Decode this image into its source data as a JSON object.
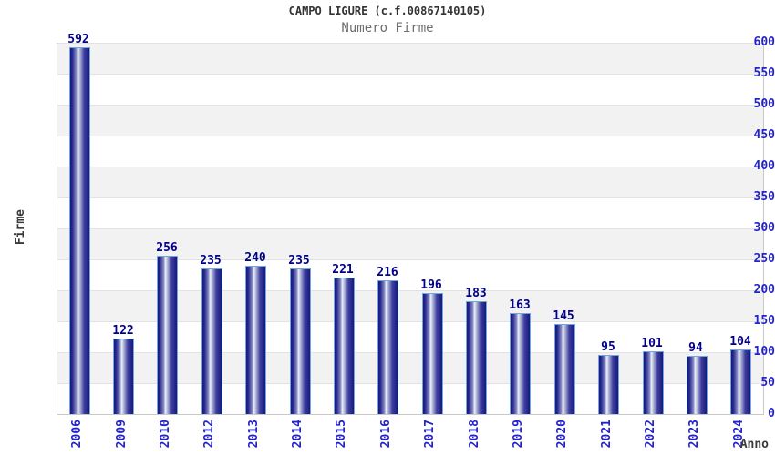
{
  "header": {
    "title": "CAMPO LIGURE (c.f.00867140105)",
    "subtitle": "Numero Firme"
  },
  "chart_data": {
    "type": "bar",
    "title": "CAMPO LIGURE (c.f.00867140105)",
    "subtitle": "Numero Firme",
    "xlabel": "Anno",
    "ylabel": "Firme",
    "categories": [
      "2006",
      "2009",
      "2010",
      "2012",
      "2013",
      "2014",
      "2015",
      "2016",
      "2017",
      "2018",
      "2019",
      "2020",
      "2021",
      "2022",
      "2023",
      "2024"
    ],
    "values": [
      592,
      122,
      256,
      235,
      240,
      235,
      221,
      216,
      196,
      183,
      163,
      145,
      95,
      101,
      94,
      104
    ],
    "ylim": [
      0,
      600
    ],
    "yticks": [
      0,
      50,
      100,
      150,
      200,
      250,
      300,
      350,
      400,
      450,
      500,
      550,
      600
    ],
    "grid": "horizontal-bands",
    "legend": "none",
    "bar_labels_shown": true
  },
  "colors": {
    "title": "#333333",
    "subtitle": "#6e6e6e",
    "axis_title": "#3a3a3a",
    "tick_label": "#2323cd",
    "value_label": "#00008b",
    "band_fill": "#f2f2f2",
    "gridline": "#e2e2e2",
    "plot_border": "#c9c9c9",
    "bar_border": "#6fa8dc",
    "bar_dark": "#17177e",
    "bar_mid": "#8a90c6",
    "bar_light": "#eef0fa"
  }
}
